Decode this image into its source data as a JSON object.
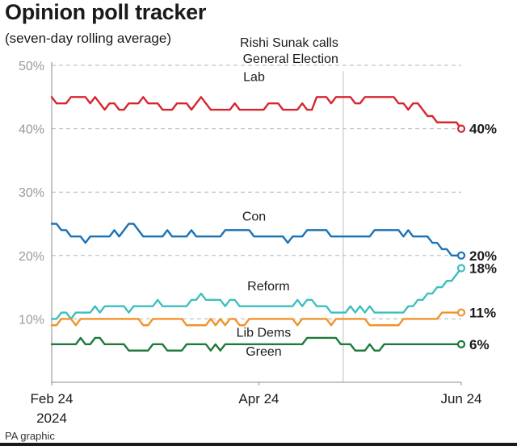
{
  "title": "Opinion poll tracker",
  "subtitle": "(seven-day rolling average)",
  "credit": "PA graphic",
  "annotation": {
    "lines": [
      "Rishi Sunak calls",
      "General Election"
    ],
    "x": 60.5
  },
  "chart_data": {
    "type": "line",
    "title": "Opinion poll tracker",
    "subtitle": "(seven-day rolling average)",
    "xlabel": "",
    "ylabel": "",
    "xlim": [
      0,
      85
    ],
    "ylim": [
      0,
      50
    ],
    "y_ticks": [
      10,
      20,
      30,
      40,
      50
    ],
    "y_tick_labels": [
      "10%",
      "20%",
      "30%",
      "40%",
      "50%"
    ],
    "x_ticks": [
      {
        "x": 0,
        "lines": [
          "Feb 24",
          "2024"
        ]
      },
      {
        "x": 43,
        "lines": [
          "Apr 24"
        ]
      },
      {
        "x": 85,
        "lines": [
          "Jun 24"
        ]
      }
    ],
    "grid": "horizontal dashed",
    "series": [
      {
        "name": "Lab",
        "color": "#d6272f",
        "end_label": "40%",
        "label_at": {
          "x": 42,
          "y": 47.5
        },
        "values": [
          45,
          44,
          44,
          44,
          45,
          45,
          45,
          45,
          44,
          45,
          44,
          43,
          44,
          44,
          43,
          43,
          44,
          44,
          44,
          45,
          44,
          44,
          44,
          43,
          43,
          43,
          44,
          44,
          44,
          43,
          44,
          45,
          44,
          43,
          43,
          43,
          43,
          43,
          44,
          43,
          43,
          43,
          43,
          43,
          43,
          44,
          44,
          44,
          43,
          43,
          43,
          43,
          44,
          43,
          43,
          45,
          45,
          45,
          44,
          45,
          45,
          45,
          45,
          44,
          44,
          45,
          45,
          45,
          45,
          45,
          45,
          45,
          44,
          44,
          43,
          44,
          44,
          43,
          42,
          42,
          41,
          41,
          41,
          41,
          41,
          40
        ]
      },
      {
        "name": "Con",
        "color": "#1b72b5",
        "end_label": "20%",
        "label_at": {
          "x": 42,
          "y": 25.5
        },
        "values": [
          25,
          25,
          24,
          24,
          23,
          23,
          23,
          22,
          23,
          23,
          23,
          23,
          23,
          24,
          23,
          24,
          25,
          25,
          24,
          23,
          23,
          23,
          23,
          23,
          24,
          23,
          23,
          23,
          23,
          24,
          23,
          23,
          23,
          23,
          23,
          23,
          24,
          24,
          24,
          24,
          24,
          24,
          23,
          23,
          23,
          23,
          23,
          23,
          23,
          22,
          23,
          23,
          23,
          24,
          24,
          24,
          24,
          24,
          23,
          23,
          23,
          23,
          23,
          23,
          23,
          23,
          23,
          24,
          24,
          24,
          24,
          24,
          24,
          23,
          24,
          23,
          23,
          23,
          23,
          22,
          22,
          21,
          21,
          20,
          20,
          20
        ]
      },
      {
        "name": "Reform",
        "color": "#3dbfbd",
        "end_label": "18%",
        "label_at": {
          "x": 45,
          "y": 14.5
        },
        "values": [
          10,
          10,
          11,
          11,
          10,
          11,
          11,
          11,
          11,
          12,
          11,
          12,
          12,
          12,
          12,
          12,
          11,
          12,
          12,
          12,
          12,
          12,
          13,
          12,
          12,
          12,
          12,
          12,
          12,
          13,
          13,
          14,
          13,
          13,
          13,
          13,
          12,
          13,
          13,
          12,
          12,
          12,
          12,
          12,
          12,
          12,
          12,
          12,
          12,
          12,
          12,
          13,
          12,
          13,
          13,
          12,
          12,
          12,
          11,
          11,
          11,
          11,
          12,
          11,
          12,
          11,
          12,
          11,
          11,
          11,
          11,
          11,
          11,
          11,
          12,
          12,
          13,
          13,
          14,
          14,
          15,
          15,
          16,
          16,
          17,
          18
        ]
      },
      {
        "name": "Lib Dems",
        "color": "#f0932b",
        "end_label": "11%",
        "label_at": {
          "x": 44,
          "y": 7.2
        },
        "values": [
          9,
          9,
          10,
          10,
          10,
          9,
          10,
          10,
          10,
          10,
          10,
          10,
          10,
          10,
          10,
          10,
          10,
          10,
          10,
          9,
          9,
          10,
          10,
          10,
          10,
          10,
          10,
          10,
          9,
          9,
          9,
          9,
          9,
          10,
          9,
          10,
          9,
          10,
          10,
          9,
          9,
          10,
          10,
          10,
          10,
          10,
          10,
          10,
          10,
          10,
          10,
          9,
          10,
          10,
          10,
          10,
          10,
          10,
          9,
          10,
          10,
          10,
          10,
          10,
          10,
          10,
          9,
          9,
          9,
          9,
          9,
          9,
          9,
          10,
          10,
          10,
          10,
          10,
          10,
          10,
          10,
          11,
          11,
          11,
          11,
          11
        ]
      },
      {
        "name": "Green",
        "color": "#1d7a3a",
        "end_label": "6%",
        "label_at": {
          "x": 44,
          "y": 4.2
        },
        "values": [
          6,
          6,
          6,
          6,
          6,
          6,
          7,
          6,
          6,
          7,
          7,
          6,
          6,
          6,
          6,
          6,
          5,
          5,
          5,
          5,
          5,
          6,
          6,
          6,
          5,
          5,
          5,
          5,
          6,
          6,
          6,
          6,
          6,
          5,
          6,
          5,
          6,
          6,
          6,
          6,
          6,
          6,
          6,
          6,
          6,
          6,
          6,
          6,
          6,
          6,
          6,
          6,
          6,
          7,
          7,
          7,
          7,
          7,
          7,
          7,
          6,
          6,
          6,
          5,
          5,
          5,
          6,
          5,
          5,
          6,
          6,
          6,
          6,
          6,
          6,
          6,
          6,
          6,
          6,
          6,
          6,
          6,
          6,
          6,
          6,
          6
        ]
      }
    ]
  }
}
